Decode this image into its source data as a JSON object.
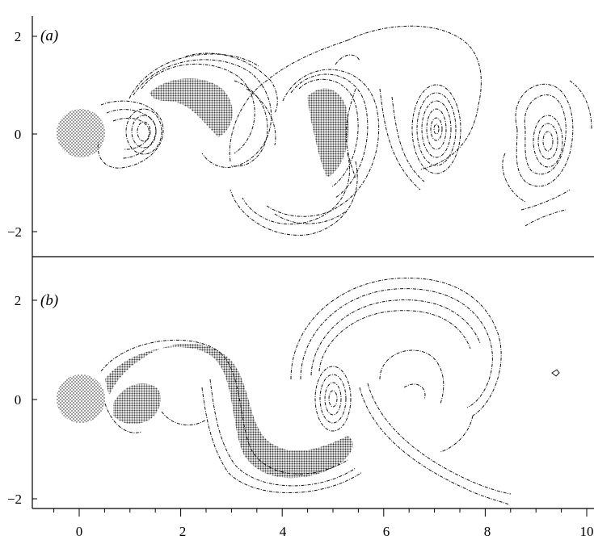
{
  "figure": {
    "panels": [
      {
        "label": "(a)",
        "y_ticks": [
          "2",
          "0",
          "−2"
        ]
      },
      {
        "label": "(b)",
        "y_ticks": [
          "2",
          "0",
          "−2"
        ]
      }
    ],
    "x_ticks": [
      "0",
      "2",
      "4",
      "6",
      "8",
      "10"
    ]
  },
  "chart_data": [
    {
      "type": "contour",
      "panel": "(a)",
      "xlim": [
        -1,
        10
      ],
      "ylim": [
        -2.5,
        2.5
      ],
      "x_ticks": [
        0,
        2,
        4,
        6,
        8,
        10
      ],
      "y_ticks": [
        -2,
        0,
        2
      ],
      "cylinder_center": [
        0,
        0
      ],
      "vortex_centers": [
        [
          1.2,
          0
        ],
        [
          2.2,
          0.6
        ],
        [
          4.8,
          -0.3
        ],
        [
          7.0,
          0.1
        ],
        [
          9.2,
          -0.2
        ]
      ]
    },
    {
      "type": "contour",
      "panel": "(b)",
      "xlim": [
        -1,
        10
      ],
      "ylim": [
        -2.5,
        2.5
      ],
      "x_ticks": [
        0,
        2,
        4,
        6,
        8,
        10
      ],
      "y_ticks": [
        -2,
        0,
        2
      ],
      "cylinder_center": [
        0,
        0
      ],
      "vortex_centers": [
        [
          1.3,
          -0.3
        ],
        [
          5.0,
          0.0
        ],
        [
          9.3,
          0.6
        ]
      ]
    }
  ]
}
